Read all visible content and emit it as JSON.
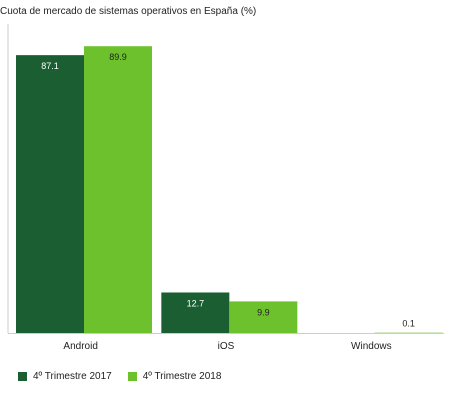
{
  "chart_data": {
    "type": "bar",
    "title": "Cuota de mercado de sistemas operativos en España (%)",
    "categories": [
      "Android",
      "iOS",
      "Windows"
    ],
    "series": [
      {
        "name": "4º Trimestre 2017",
        "values": [
          87.1,
          12.7,
          null
        ],
        "color": "#1a5e32"
      },
      {
        "name": "4º Trimestre 2018",
        "values": [
          89.9,
          9.9,
          0.1
        ],
        "color": "#6cc12c"
      }
    ],
    "value_labels": [
      [
        "87.1",
        "12.7",
        ""
      ],
      [
        "89.9",
        "9.9",
        "0.1"
      ]
    ],
    "ylim": [
      0,
      100
    ],
    "grid": false,
    "legend_position": "bottom-left",
    "xlabel": "",
    "ylabel": ""
  }
}
